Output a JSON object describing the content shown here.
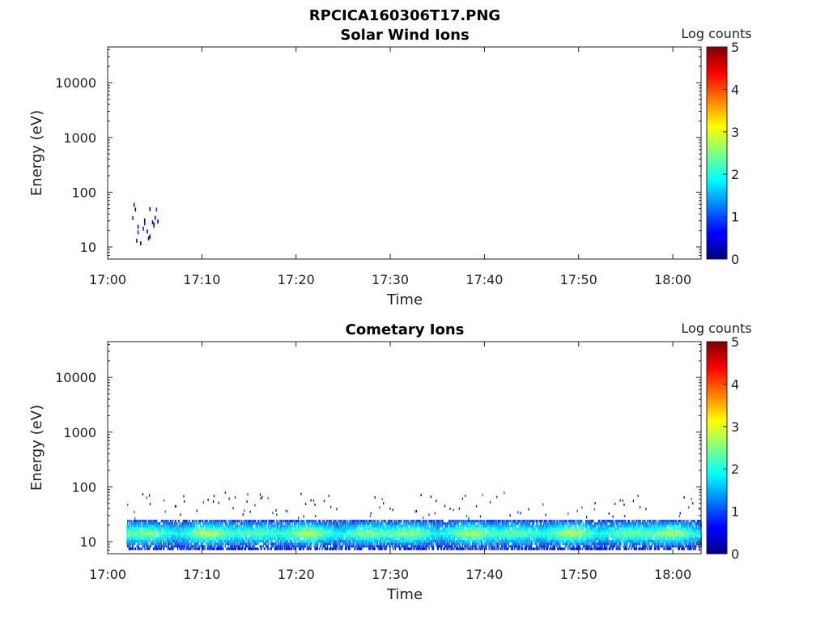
{
  "figure_title": "RPCICA160306T17.PNG",
  "colorbar": {
    "label": "Log counts",
    "ticks": [
      "5",
      "4",
      "3",
      "2",
      "1",
      "0"
    ],
    "range": [
      0,
      5
    ],
    "colormap": "jet"
  },
  "chart_data": [
    {
      "type": "heatmap",
      "title": "Solar Wind Ions",
      "xlabel": "Time",
      "ylabel": "Energy (eV)",
      "yscale": "log",
      "ylim": [
        6,
        45000
      ],
      "xlim": [
        "17:00",
        "18:03"
      ],
      "xticks": [
        "17:00",
        "17:10",
        "17:20",
        "17:30",
        "17:40",
        "17:50",
        "18:00"
      ],
      "yticks": [
        "10",
        "100",
        "1000",
        "10000"
      ],
      "time_range_observed": [
        "17:02",
        "17:05"
      ],
      "energy_range_observed_eV": [
        8,
        75
      ],
      "log_counts_max": 1
    },
    {
      "type": "heatmap",
      "title": "Cometary Ions",
      "xlabel": "Time",
      "ylabel": "Energy (eV)",
      "yscale": "log",
      "ylim": [
        6,
        45000
      ],
      "xlim": [
        "17:00",
        "18:03"
      ],
      "xticks": [
        "17:00",
        "17:10",
        "17:20",
        "17:30",
        "17:40",
        "17:50",
        "18:00"
      ],
      "yticks": [
        "10",
        "100",
        "1000",
        "10000"
      ],
      "time_range_observed": [
        "17:02",
        "18:03"
      ],
      "energy_band_main_eV": [
        7,
        25
      ],
      "energy_band_sparse_eV": [
        25,
        80
      ],
      "log_counts_typical": [
        0.5,
        2.2
      ],
      "log_counts_max": 2.8
    }
  ]
}
